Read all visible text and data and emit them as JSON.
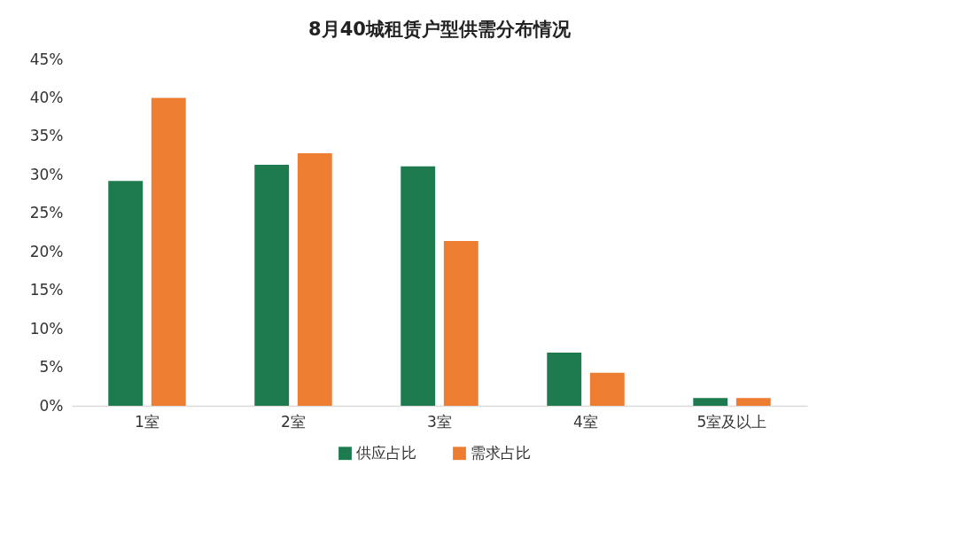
{
  "chart_data": {
    "type": "bar",
    "title": "8月40城租赁户型供需分布情况",
    "categories": [
      "1室",
      "2室",
      "3室",
      "4室",
      "5室及以上"
    ],
    "series": [
      {
        "name": "供应占比",
        "color": "#1e7b4f",
        "values": [
          29.2,
          31.3,
          31.1,
          6.9,
          1.0
        ]
      },
      {
        "name": "需求占比",
        "color": "#ed7d31",
        "values": [
          40.0,
          32.8,
          21.4,
          4.3,
          1.0
        ]
      }
    ],
    "ylim": [
      0,
      45
    ],
    "yticks": [
      {
        "value": 0,
        "label": "0%"
      },
      {
        "value": 5,
        "label": "5%"
      },
      {
        "value": 10,
        "label": "10%"
      },
      {
        "value": 15,
        "label": "15%"
      },
      {
        "value": 20,
        "label": "20%"
      },
      {
        "value": 25,
        "label": "25%"
      },
      {
        "value": 30,
        "label": "30%"
      },
      {
        "value": 35,
        "label": "35%"
      },
      {
        "value": 40,
        "label": "40%"
      },
      {
        "value": 45,
        "label": "45%"
      }
    ],
    "grid": false,
    "legend": "bottom"
  }
}
